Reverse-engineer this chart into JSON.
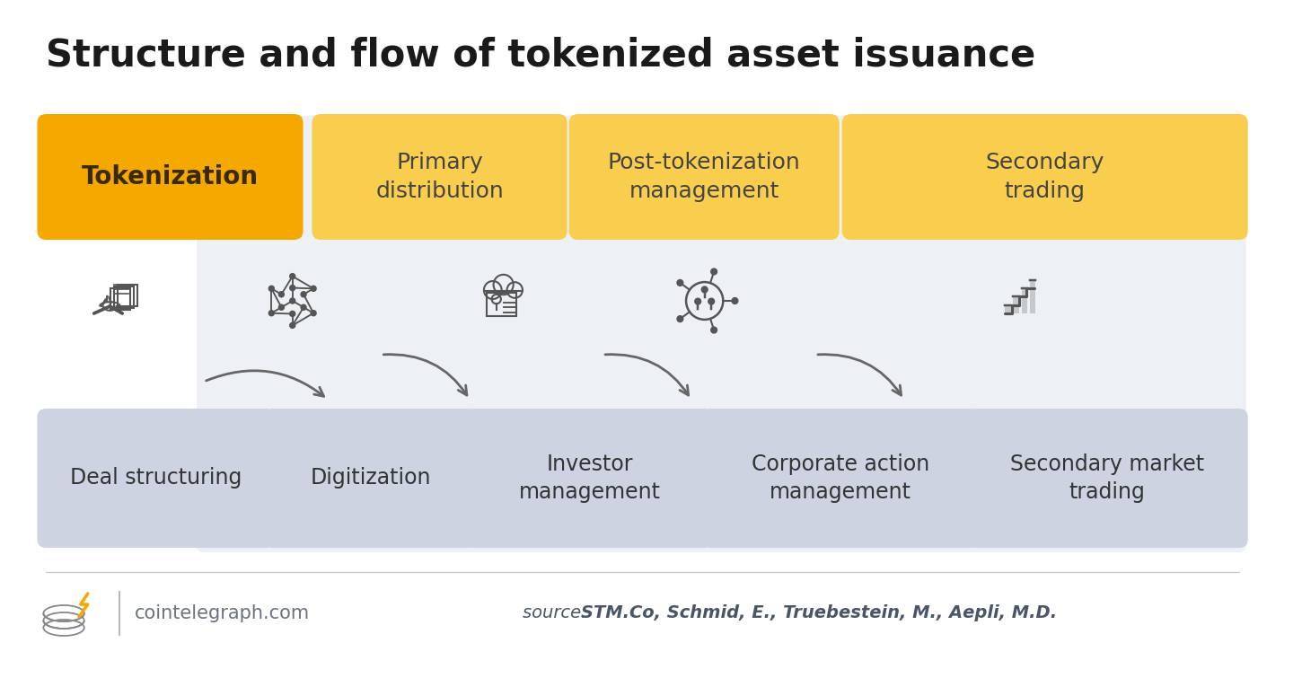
{
  "title": "Structure and flow of tokenized asset issuance",
  "title_fontsize": 30,
  "title_fontweight": "bold",
  "title_color": "#1a1a1a",
  "bg_color": "#ffffff",
  "main_area_bg": "#edf0f5",
  "top_boxes": [
    {
      "label": "Tokenization",
      "bold": true,
      "color": "#F5A800",
      "text_color": "#3a2a00"
    },
    {
      "label": "Primary\ndistribution",
      "bold": false,
      "color": "#F9CE4E",
      "text_color": "#444444"
    },
    {
      "label": "Post-tokenization\nmanagement",
      "bold": false,
      "color": "#F9CE4E",
      "text_color": "#444444"
    },
    {
      "label": "Secondary\ntrading",
      "bold": false,
      "color": "#F9CE4E",
      "text_color": "#444444"
    }
  ],
  "bottom_boxes": [
    {
      "label": "Deal structuring"
    },
    {
      "label": "Digitization"
    },
    {
      "label": "Investor\nmanagement"
    },
    {
      "label": "Corporate action\nmanagement"
    },
    {
      "label": "Secondary market\ntrading"
    }
  ],
  "bottom_box_color": "#cdd3e0",
  "bottom_box_text_color": "#333333",
  "arrow_color": "#666666",
  "source_text_normal": "source: ",
  "source_text_bold": "STM.Co, Schmid, E., Truebestein, M., Aepli, M.D.",
  "source_text_color": "#4a5568",
  "footer_text": "cointelegraph.com",
  "footer_text_color": "#6b7280",
  "separator_color": "#aaaaaa",
  "icon_color": "#555555"
}
